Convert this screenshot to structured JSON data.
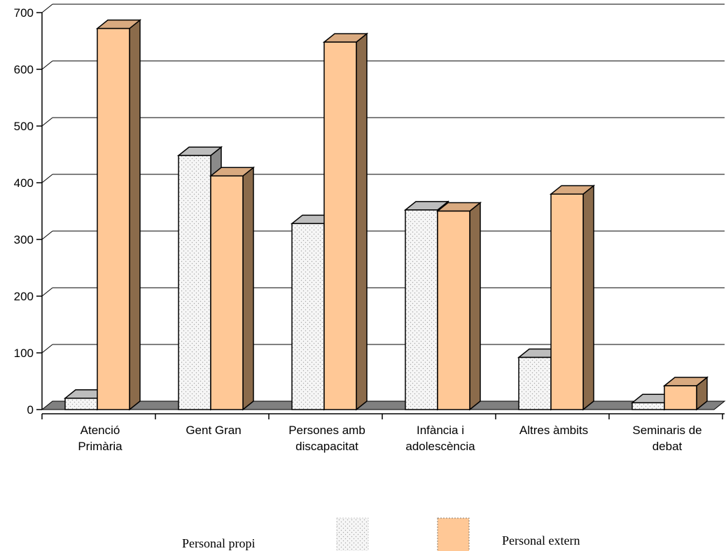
{
  "chart_data": {
    "type": "bar",
    "categories": [
      [
        "Atenció",
        "Primària"
      ],
      [
        "Gent Gran"
      ],
      [
        "Persones amb",
        "discapacitat"
      ],
      [
        "Infància i",
        "adolescència"
      ],
      [
        "Altres àmbits"
      ],
      [
        "Seminaris de",
        "debat"
      ]
    ],
    "series": [
      {
        "name": "Personal propi",
        "values": [
          20,
          448,
          328,
          352,
          92,
          12
        ]
      },
      {
        "name": "Personal extern",
        "values": [
          672,
          412,
          648,
          350,
          380,
          42
        ]
      }
    ],
    "y_ticks": [
      "0",
      "100",
      "200",
      "300",
      "400",
      "500",
      "600",
      "700"
    ],
    "ylim": [
      0,
      700
    ],
    "grid": true,
    "style": "3d-clustered-column",
    "legend_position": "bottom",
    "colors": {
      "extern_front": "#ffc896",
      "extern_top": "#d9aa80",
      "extern_side": "#8b6b4b",
      "propi_front": "#f4f4f4",
      "propi_top": "#bdbdbd",
      "propi_side": "#8a8a8a",
      "floor": "#808080",
      "grid": "#000000"
    }
  }
}
